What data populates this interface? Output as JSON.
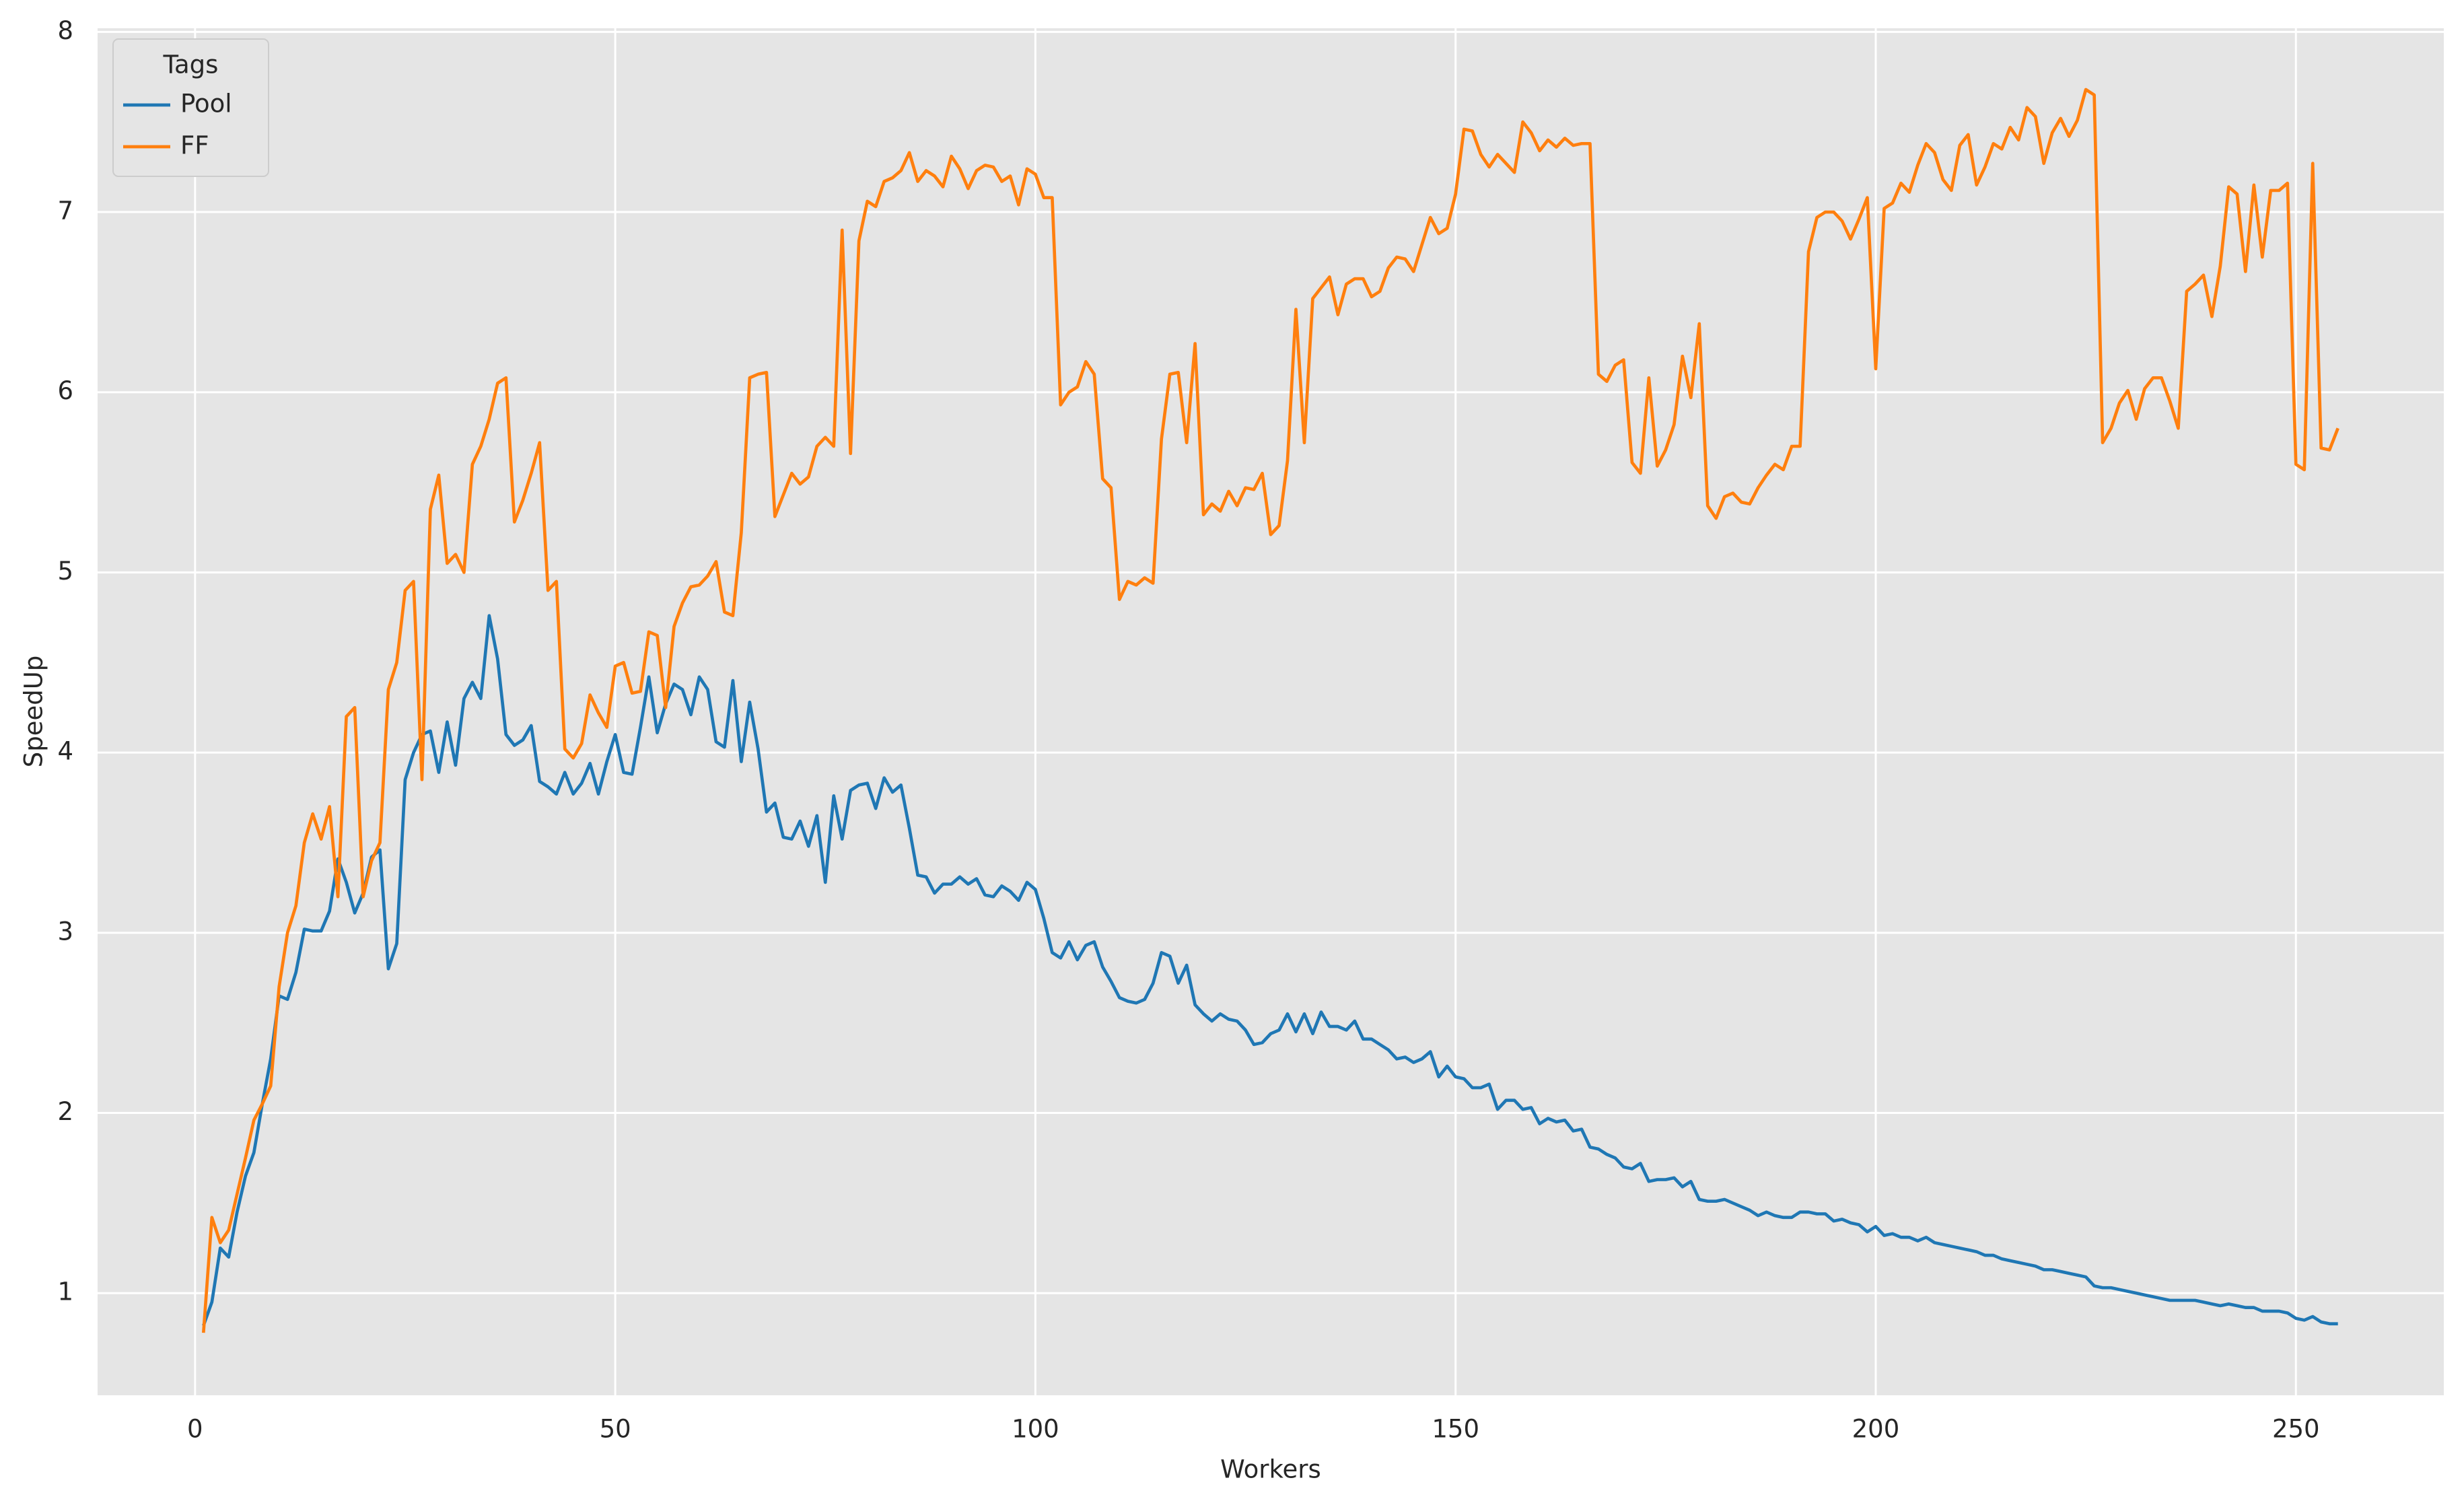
{
  "chart_data": {
    "type": "line",
    "xlabel": "Workers",
    "ylabel": "SpeedUp",
    "legend_title": "Tags",
    "legend": "upper left",
    "grid": true,
    "xlim": [
      -11.6,
      267.6
    ],
    "ylim": [
      0.433,
      8.02
    ],
    "xticks": [
      0,
      50,
      100,
      150,
      200,
      250
    ],
    "yticks": [
      1,
      2,
      3,
      4,
      5,
      6,
      7,
      8
    ],
    "x": [
      1,
      2,
      3,
      4,
      5,
      6,
      7,
      8,
      9,
      10,
      11,
      12,
      13,
      14,
      15,
      16,
      17,
      18,
      19,
      20,
      21,
      22,
      23,
      24,
      25,
      26,
      27,
      28,
      29,
      30,
      31,
      32,
      33,
      34,
      35,
      36,
      37,
      38,
      39,
      40,
      41,
      42,
      43,
      44,
      45,
      46,
      47,
      48,
      49,
      50,
      51,
      52,
      53,
      54,
      55,
      56,
      57,
      58,
      59,
      60,
      61,
      62,
      63,
      64,
      65,
      66,
      67,
      68,
      69,
      70,
      71,
      72,
      73,
      74,
      75,
      76,
      77,
      78,
      79,
      80,
      81,
      82,
      83,
      84,
      85,
      86,
      87,
      88,
      89,
      90,
      91,
      92,
      93,
      94,
      95,
      96,
      97,
      98,
      99,
      100,
      101,
      102,
      103,
      104,
      105,
      106,
      107,
      108,
      109,
      110,
      111,
      112,
      113,
      114,
      115,
      116,
      117,
      118,
      119,
      120,
      121,
      122,
      123,
      124,
      125,
      126,
      127,
      128,
      129,
      130,
      131,
      132,
      133,
      134,
      135,
      136,
      137,
      138,
      139,
      140,
      141,
      142,
      143,
      144,
      145,
      146,
      147,
      148,
      149,
      150,
      151,
      152,
      153,
      154,
      155,
      156,
      157,
      158,
      159,
      160,
      161,
      162,
      163,
      164,
      165,
      166,
      167,
      168,
      169,
      170,
      171,
      172,
      173,
      174,
      175,
      176,
      177,
      178,
      179,
      180,
      181,
      182,
      183,
      184,
      185,
      186,
      187,
      188,
      189,
      190,
      191,
      192,
      193,
      194,
      195,
      196,
      197,
      198,
      199,
      200,
      201,
      202,
      203,
      204,
      205,
      206,
      207,
      208,
      209,
      210,
      211,
      212,
      213,
      214,
      215,
      216,
      217,
      218,
      219,
      220,
      221,
      222,
      223,
      224,
      225,
      226,
      227,
      228,
      229,
      230,
      231,
      232,
      233,
      234,
      235,
      236,
      237,
      238,
      239,
      240,
      241,
      242,
      243,
      244,
      245,
      246,
      247,
      248,
      249,
      250,
      251,
      252,
      253,
      254,
      255
    ],
    "series": [
      {
        "name": "Pool",
        "color": "#1f77b4",
        "values": [
          0.82,
          0.95,
          1.25,
          1.2,
          1.45,
          1.65,
          1.78,
          2.05,
          2.3,
          2.65,
          2.63,
          2.78,
          3.02,
          3.01,
          3.01,
          3.12,
          3.41,
          3.28,
          3.11,
          3.22,
          3.42,
          3.46,
          2.8,
          2.94,
          3.85,
          4.0,
          4.1,
          4.12,
          3.89,
          4.17,
          3.93,
          4.3,
          4.39,
          4.3,
          4.76,
          4.52,
          4.1,
          4.04,
          4.07,
          4.15,
          3.84,
          3.81,
          3.77,
          3.89,
          3.77,
          3.83,
          3.94,
          3.77,
          3.95,
          4.1,
          3.89,
          3.88,
          4.14,
          4.42,
          4.11,
          4.27,
          4.38,
          4.35,
          4.21,
          4.42,
          4.35,
          4.06,
          4.03,
          4.4,
          3.95,
          4.28,
          4.02,
          3.67,
          3.72,
          3.53,
          3.52,
          3.62,
          3.48,
          3.65,
          3.28,
          3.76,
          3.52,
          3.79,
          3.82,
          3.83,
          3.69,
          3.86,
          3.78,
          3.82,
          3.58,
          3.32,
          3.31,
          3.22,
          3.27,
          3.27,
          3.31,
          3.27,
          3.3,
          3.21,
          3.2,
          3.26,
          3.23,
          3.18,
          3.28,
          3.24,
          3.08,
          2.89,
          2.86,
          2.95,
          2.85,
          2.93,
          2.95,
          2.81,
          2.73,
          2.64,
          2.62,
          2.61,
          2.63,
          2.72,
          2.89,
          2.87,
          2.72,
          2.82,
          2.6,
          2.55,
          2.51,
          2.55,
          2.52,
          2.51,
          2.46,
          2.38,
          2.39,
          2.44,
          2.46,
          2.55,
          2.45,
          2.55,
          2.44,
          2.56,
          2.48,
          2.48,
          2.46,
          2.51,
          2.41,
          2.41,
          2.38,
          2.35,
          2.3,
          2.31,
          2.28,
          2.3,
          2.34,
          2.2,
          2.26,
          2.2,
          2.19,
          2.14,
          2.14,
          2.16,
          2.02,
          2.07,
          2.07,
          2.02,
          2.03,
          1.94,
          1.97,
          1.95,
          1.96,
          1.9,
          1.91,
          1.81,
          1.8,
          1.77,
          1.75,
          1.7,
          1.69,
          1.72,
          1.62,
          1.63,
          1.63,
          1.64,
          1.59,
          1.62,
          1.52,
          1.51,
          1.51,
          1.52,
          1.5,
          1.48,
          1.46,
          1.43,
          1.45,
          1.43,
          1.42,
          1.42,
          1.45,
          1.45,
          1.44,
          1.44,
          1.4,
          1.41,
          1.39,
          1.38,
          1.34,
          1.37,
          1.32,
          1.33,
          1.31,
          1.31,
          1.29,
          1.31,
          1.28,
          1.27,
          1.26,
          1.25,
          1.24,
          1.23,
          1.21,
          1.21,
          1.19,
          1.18,
          1.17,
          1.16,
          1.15,
          1.13,
          1.13,
          1.12,
          1.11,
          1.1,
          1.09,
          1.04,
          1.03,
          1.03,
          1.02,
          1.01,
          1.0,
          0.99,
          0.98,
          0.97,
          0.96,
          0.96,
          0.96,
          0.96,
          0.95,
          0.94,
          0.93,
          0.94,
          0.93,
          0.92,
          0.92,
          0.9,
          0.9,
          0.9,
          0.89,
          0.86,
          0.85,
          0.87,
          0.84,
          0.83,
          0.83
        ]
      },
      {
        "name": "FF",
        "color": "#ff7f0e",
        "values": [
          0.78,
          1.42,
          1.28,
          1.35,
          1.55,
          1.75,
          1.96,
          2.05,
          2.15,
          2.7,
          3.0,
          3.15,
          3.5,
          3.66,
          3.52,
          3.7,
          3.2,
          4.2,
          4.25,
          3.2,
          3.4,
          3.5,
          4.35,
          4.5,
          4.9,
          4.95,
          3.85,
          5.35,
          5.54,
          5.05,
          5.1,
          5.0,
          5.6,
          5.7,
          5.85,
          6.05,
          6.08,
          5.28,
          5.4,
          5.55,
          5.72,
          4.9,
          4.95,
          4.02,
          3.97,
          4.05,
          4.32,
          4.22,
          4.14,
          4.48,
          4.5,
          4.33,
          4.34,
          4.67,
          4.65,
          4.25,
          4.7,
          4.83,
          4.92,
          4.93,
          4.98,
          5.06,
          4.78,
          4.76,
          5.22,
          6.08,
          6.1,
          6.11,
          5.31,
          5.43,
          5.55,
          5.49,
          5.53,
          5.7,
          5.75,
          5.7,
          6.9,
          5.66,
          6.84,
          7.06,
          7.03,
          7.17,
          7.19,
          7.23,
          7.33,
          7.17,
          7.23,
          7.2,
          7.14,
          7.31,
          7.24,
          7.13,
          7.23,
          7.26,
          7.25,
          7.17,
          7.2,
          7.04,
          7.24,
          7.21,
          7.08,
          7.08,
          5.93,
          6.0,
          6.03,
          6.17,
          6.1,
          5.52,
          5.47,
          4.85,
          4.95,
          4.93,
          4.97,
          4.94,
          5.74,
          6.1,
          6.11,
          5.72,
          6.27,
          5.32,
          5.38,
          5.34,
          5.45,
          5.37,
          5.47,
          5.46,
          5.55,
          5.21,
          5.26,
          5.62,
          6.46,
          5.72,
          6.52,
          6.58,
          6.64,
          6.43,
          6.6,
          6.63,
          6.63,
          6.53,
          6.56,
          6.69,
          6.75,
          6.74,
          6.67,
          6.82,
          6.97,
          6.88,
          6.91,
          7.1,
          7.46,
          7.45,
          7.32,
          7.25,
          7.32,
          7.27,
          7.22,
          7.5,
          7.44,
          7.34,
          7.4,
          7.36,
          7.41,
          7.37,
          7.38,
          7.38,
          6.1,
          6.06,
          6.15,
          6.18,
          5.61,
          5.55,
          6.08,
          5.59,
          5.68,
          5.82,
          6.2,
          5.97,
          6.38,
          5.37,
          5.3,
          5.42,
          5.44,
          5.39,
          5.38,
          5.47,
          5.54,
          5.6,
          5.57,
          5.7,
          5.7,
          6.78,
          6.97,
          7.0,
          7.0,
          6.95,
          6.85,
          6.96,
          7.08,
          6.13,
          7.02,
          7.05,
          7.16,
          7.11,
          7.26,
          7.38,
          7.33,
          7.18,
          7.12,
          7.37,
          7.43,
          7.15,
          7.25,
          7.38,
          7.35,
          7.47,
          7.4,
          7.58,
          7.53,
          7.27,
          7.44,
          7.52,
          7.42,
          7.51,
          7.68,
          7.65,
          5.72,
          5.8,
          5.94,
          6.01,
          5.85,
          6.02,
          6.08,
          6.08,
          5.95,
          5.8,
          6.56,
          6.6,
          6.65,
          6.42,
          6.7,
          7.14,
          7.1,
          6.67,
          7.15,
          6.75,
          7.12,
          7.12,
          7.16,
          5.6,
          5.57,
          7.27,
          5.69,
          5.68,
          5.8
        ]
      }
    ]
  }
}
